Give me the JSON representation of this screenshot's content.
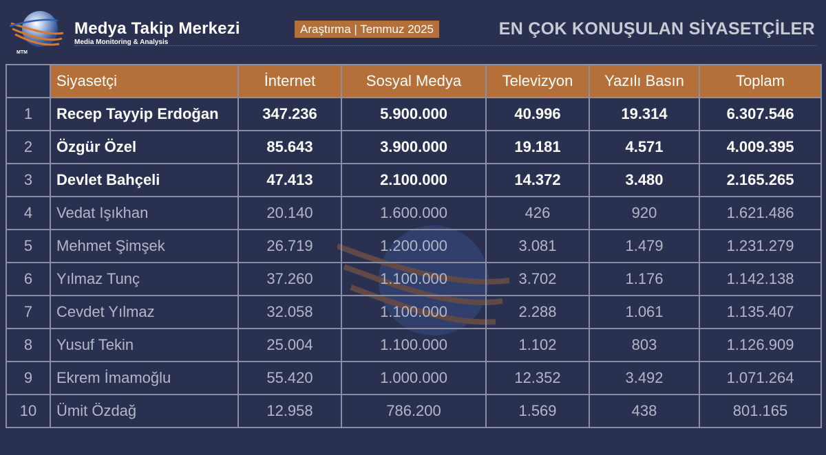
{
  "brand": {
    "name": "Medya Takip Merkezi",
    "tagline": "Media Monitoring & Analysis",
    "logo_abbr": "MTM"
  },
  "research_tag": "Araştırma | Temmuz 2025",
  "title": "EN ÇOK KONUŞULAN SİYASETÇİLER",
  "colors": {
    "background": "#2a3150",
    "accent": "#b5703a",
    "border": "#8a8fa6",
    "muted_text": "#b3b7c6"
  },
  "table": {
    "headers": [
      "",
      "Siyasetçi",
      "İnternet",
      "Sosyal Medya",
      "Televizyon",
      "Yazılı Basın",
      "Toplam"
    ],
    "rows": [
      {
        "rank": "1",
        "name": "Recep Tayyip Erdoğan",
        "internet": "347.236",
        "social": "5.900.000",
        "tv": "40.996",
        "print": "19.314",
        "total": "6.307.546"
      },
      {
        "rank": "2",
        "name": "Özgür Özel",
        "internet": "85.643",
        "social": "3.900.000",
        "tv": "19.181",
        "print": "4.571",
        "total": "4.009.395"
      },
      {
        "rank": "3",
        "name": "Devlet Bahçeli",
        "internet": "47.413",
        "social": "2.100.000",
        "tv": "14.372",
        "print": "3.480",
        "total": "2.165.265"
      },
      {
        "rank": "4",
        "name": "Vedat Işıkhan",
        "internet": "20.140",
        "social": "1.600.000",
        "tv": "426",
        "print": "920",
        "total": "1.621.486"
      },
      {
        "rank": "5",
        "name": "Mehmet Şimşek",
        "internet": "26.719",
        "social": "1.200.000",
        "tv": "3.081",
        "print": "1.479",
        "total": "1.231.279"
      },
      {
        "rank": "6",
        "name": "Yılmaz Tunç",
        "internet": "37.260",
        "social": "1.100.000",
        "tv": "3.702",
        "print": "1.176",
        "total": "1.142.138"
      },
      {
        "rank": "7",
        "name": "Cevdet Yılmaz",
        "internet": "32.058",
        "social": "1.100.000",
        "tv": "2.288",
        "print": "1.061",
        "total": "1.135.407"
      },
      {
        "rank": "8",
        "name": "Yusuf Tekin",
        "internet": "25.004",
        "social": "1.100.000",
        "tv": "1.102",
        "print": "803",
        "total": "1.126.909"
      },
      {
        "rank": "9",
        "name": "Ekrem İmamoğlu",
        "internet": "55.420",
        "social": "1.000.000",
        "tv": "12.352",
        "print": "3.492",
        "total": "1.071.264"
      },
      {
        "rank": "10",
        "name": "Ümit Özdağ",
        "internet": "12.958",
        "social": "786.200",
        "tv": "1.569",
        "print": "438",
        "total": "801.165"
      }
    ]
  }
}
